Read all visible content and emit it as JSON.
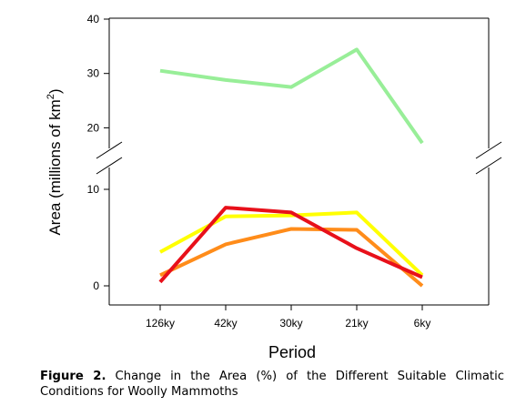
{
  "chart_data": {
    "type": "line",
    "categories": [
      "126ky",
      "42ky",
      "30ky",
      "21ky",
      "6ky"
    ],
    "xlabel": "Period",
    "ylabel": {
      "prefix": "Area (millions of km",
      "sup": "2",
      "suffix": ")"
    },
    "axis_break": true,
    "lower_ylim": [
      -3,
      12
    ],
    "upper_ylim": [
      15,
      40
    ],
    "y_ticks_lower": [
      0,
      10
    ],
    "y_ticks_upper": [
      20,
      30,
      40
    ],
    "grid": false,
    "legend": "none",
    "series": [
      {
        "color": "#98ee98",
        "values": [
          30.5,
          28.8,
          27.5,
          34.4,
          14.8
        ]
      },
      {
        "color": "#ffff00",
        "values": [
          3.5,
          7.2,
          7.3,
          7.6,
          1.1
        ]
      },
      {
        "color": "#ff8c1a",
        "values": [
          1.1,
          4.3,
          5.9,
          5.8,
          0.0
        ]
      },
      {
        "color": "#e8101a",
        "values": [
          0.4,
          8.1,
          7.6,
          3.9,
          0.9
        ]
      }
    ]
  },
  "caption": {
    "label": "Figure 2.",
    "text": " Change in the Area (%) of the Different Suitable Climatic Conditions for Woolly Mammoths"
  }
}
